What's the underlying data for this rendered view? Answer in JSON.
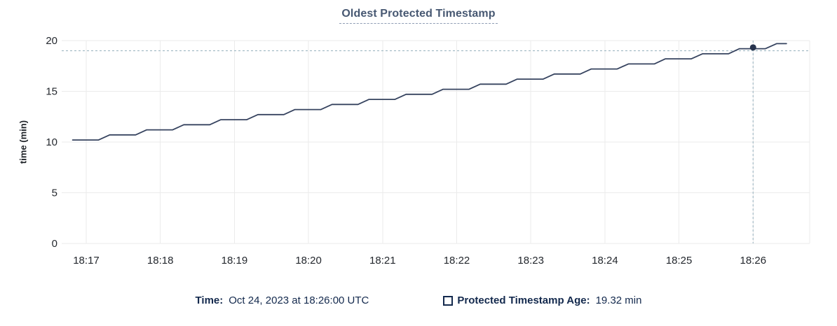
{
  "title": "Oldest Protected Timestamp",
  "hover_legend": {
    "time_label": "Time:",
    "time_value": "Oct 24, 2023 at 18:26:00 UTC",
    "series_label": "Protected Timestamp Age:",
    "series_value": "19.32 min"
  },
  "colors": {
    "line": "#36435f",
    "dot": "#26334d",
    "crosshair": "#a4bcc6",
    "grid": "#ebebeb",
    "axis_text": "#24282e",
    "title_text": "#475872",
    "legend_text": "#13294d"
  },
  "chart_data": {
    "type": "line",
    "title": "Oldest Protected Timestamp",
    "xlabel": "",
    "ylabel": "time (min)",
    "ylim": [
      0,
      20
    ],
    "y_ticks": [
      0,
      5,
      10,
      15,
      20
    ],
    "x_ticks": [
      "18:17",
      "18:18",
      "18:19",
      "18:20",
      "18:21",
      "18:22",
      "18:23",
      "18:24",
      "18:25",
      "18:26"
    ],
    "grid": true,
    "legend_position": "bottom",
    "series": [
      {
        "name": "Protected Timestamp Age",
        "unit": "min",
        "points": [
          [
            "18:16:49",
            10.2
          ],
          [
            "18:17:10",
            10.2
          ],
          [
            "18:17:19",
            10.7
          ],
          [
            "18:17:40",
            10.7
          ],
          [
            "18:17:49",
            11.2
          ],
          [
            "18:18:10",
            11.2
          ],
          [
            "18:18:19",
            11.7
          ],
          [
            "18:18:40",
            11.7
          ],
          [
            "18:18:49",
            12.2
          ],
          [
            "18:19:10",
            12.2
          ],
          [
            "18:19:19",
            12.7
          ],
          [
            "18:19:40",
            12.7
          ],
          [
            "18:19:49",
            13.2
          ],
          [
            "18:20:10",
            13.2
          ],
          [
            "18:20:19",
            13.7
          ],
          [
            "18:20:40",
            13.7
          ],
          [
            "18:20:49",
            14.2
          ],
          [
            "18:21:10",
            14.2
          ],
          [
            "18:21:19",
            14.7
          ],
          [
            "18:21:40",
            14.7
          ],
          [
            "18:21:49",
            15.2
          ],
          [
            "18:22:10",
            15.2
          ],
          [
            "18:22:19",
            15.7
          ],
          [
            "18:22:40",
            15.7
          ],
          [
            "18:22:49",
            16.2
          ],
          [
            "18:23:10",
            16.2
          ],
          [
            "18:23:19",
            16.7
          ],
          [
            "18:23:40",
            16.7
          ],
          [
            "18:23:49",
            17.2
          ],
          [
            "18:24:10",
            17.2
          ],
          [
            "18:24:19",
            17.7
          ],
          [
            "18:24:40",
            17.7
          ],
          [
            "18:24:49",
            18.2
          ],
          [
            "18:25:10",
            18.2
          ],
          [
            "18:25:19",
            18.7
          ],
          [
            "18:25:40",
            18.7
          ],
          [
            "18:25:49",
            19.2
          ],
          [
            "18:26:10",
            19.2
          ],
          [
            "18:26:19",
            19.7
          ],
          [
            "18:26:27",
            19.7
          ]
        ]
      }
    ],
    "hover": {
      "time": "18:26:00",
      "value": 19.32,
      "mouse_value": 19.0
    }
  }
}
